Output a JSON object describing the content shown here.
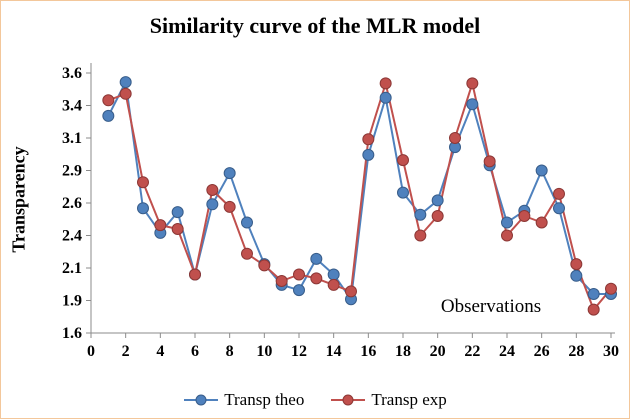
{
  "chart_data": {
    "type": "line",
    "title": "Similarity curve of the MLR model",
    "xlabel": "Observations",
    "ylabel": "Transparency",
    "xlim": [
      0,
      30
    ],
    "ylim": [
      1.6,
      3.6
    ],
    "grid": false,
    "legend_position": "bottom",
    "x": [
      1,
      2,
      3,
      4,
      5,
      6,
      7,
      8,
      9,
      10,
      11,
      12,
      13,
      14,
      15,
      16,
      17,
      18,
      19,
      20,
      21,
      22,
      23,
      24,
      25,
      26,
      27,
      28,
      29,
      30
    ],
    "x_ticks": [
      0,
      2,
      4,
      6,
      8,
      10,
      12,
      14,
      16,
      18,
      20,
      22,
      24,
      26,
      28,
      30
    ],
    "y_ticks": {
      "values": [
        1.6,
        1.85,
        2.1,
        2.35,
        2.6,
        2.85,
        3.1,
        3.35,
        3.6
      ],
      "labels": [
        "1.6",
        "1.9",
        "2.1",
        "2.4",
        "2.6",
        "2.9",
        "3.1",
        "3.4",
        "3.6"
      ]
    },
    "series": [
      {
        "name": "Transp theo",
        "color": "#4f81bd",
        "marker_stroke": "#385d8a",
        "values": [
          3.27,
          3.53,
          2.56,
          2.37,
          2.53,
          2.05,
          2.59,
          2.83,
          2.45,
          2.13,
          1.97,
          1.93,
          2.17,
          2.05,
          1.86,
          2.97,
          3.41,
          2.68,
          2.51,
          2.62,
          3.03,
          3.36,
          2.89,
          2.45,
          2.54,
          2.85,
          2.56,
          2.04,
          1.9,
          1.9
        ]
      },
      {
        "name": "Transp exp",
        "color": "#c0504d",
        "marker_stroke": "#8c3836",
        "values": [
          3.39,
          3.44,
          2.76,
          2.43,
          2.4,
          2.05,
          2.7,
          2.57,
          2.21,
          2.12,
          2.0,
          2.05,
          2.02,
          1.97,
          1.92,
          3.09,
          3.52,
          2.93,
          2.35,
          2.5,
          3.1,
          3.52,
          2.92,
          2.35,
          2.5,
          2.45,
          2.67,
          2.13,
          1.78,
          1.94
        ]
      }
    ]
  }
}
